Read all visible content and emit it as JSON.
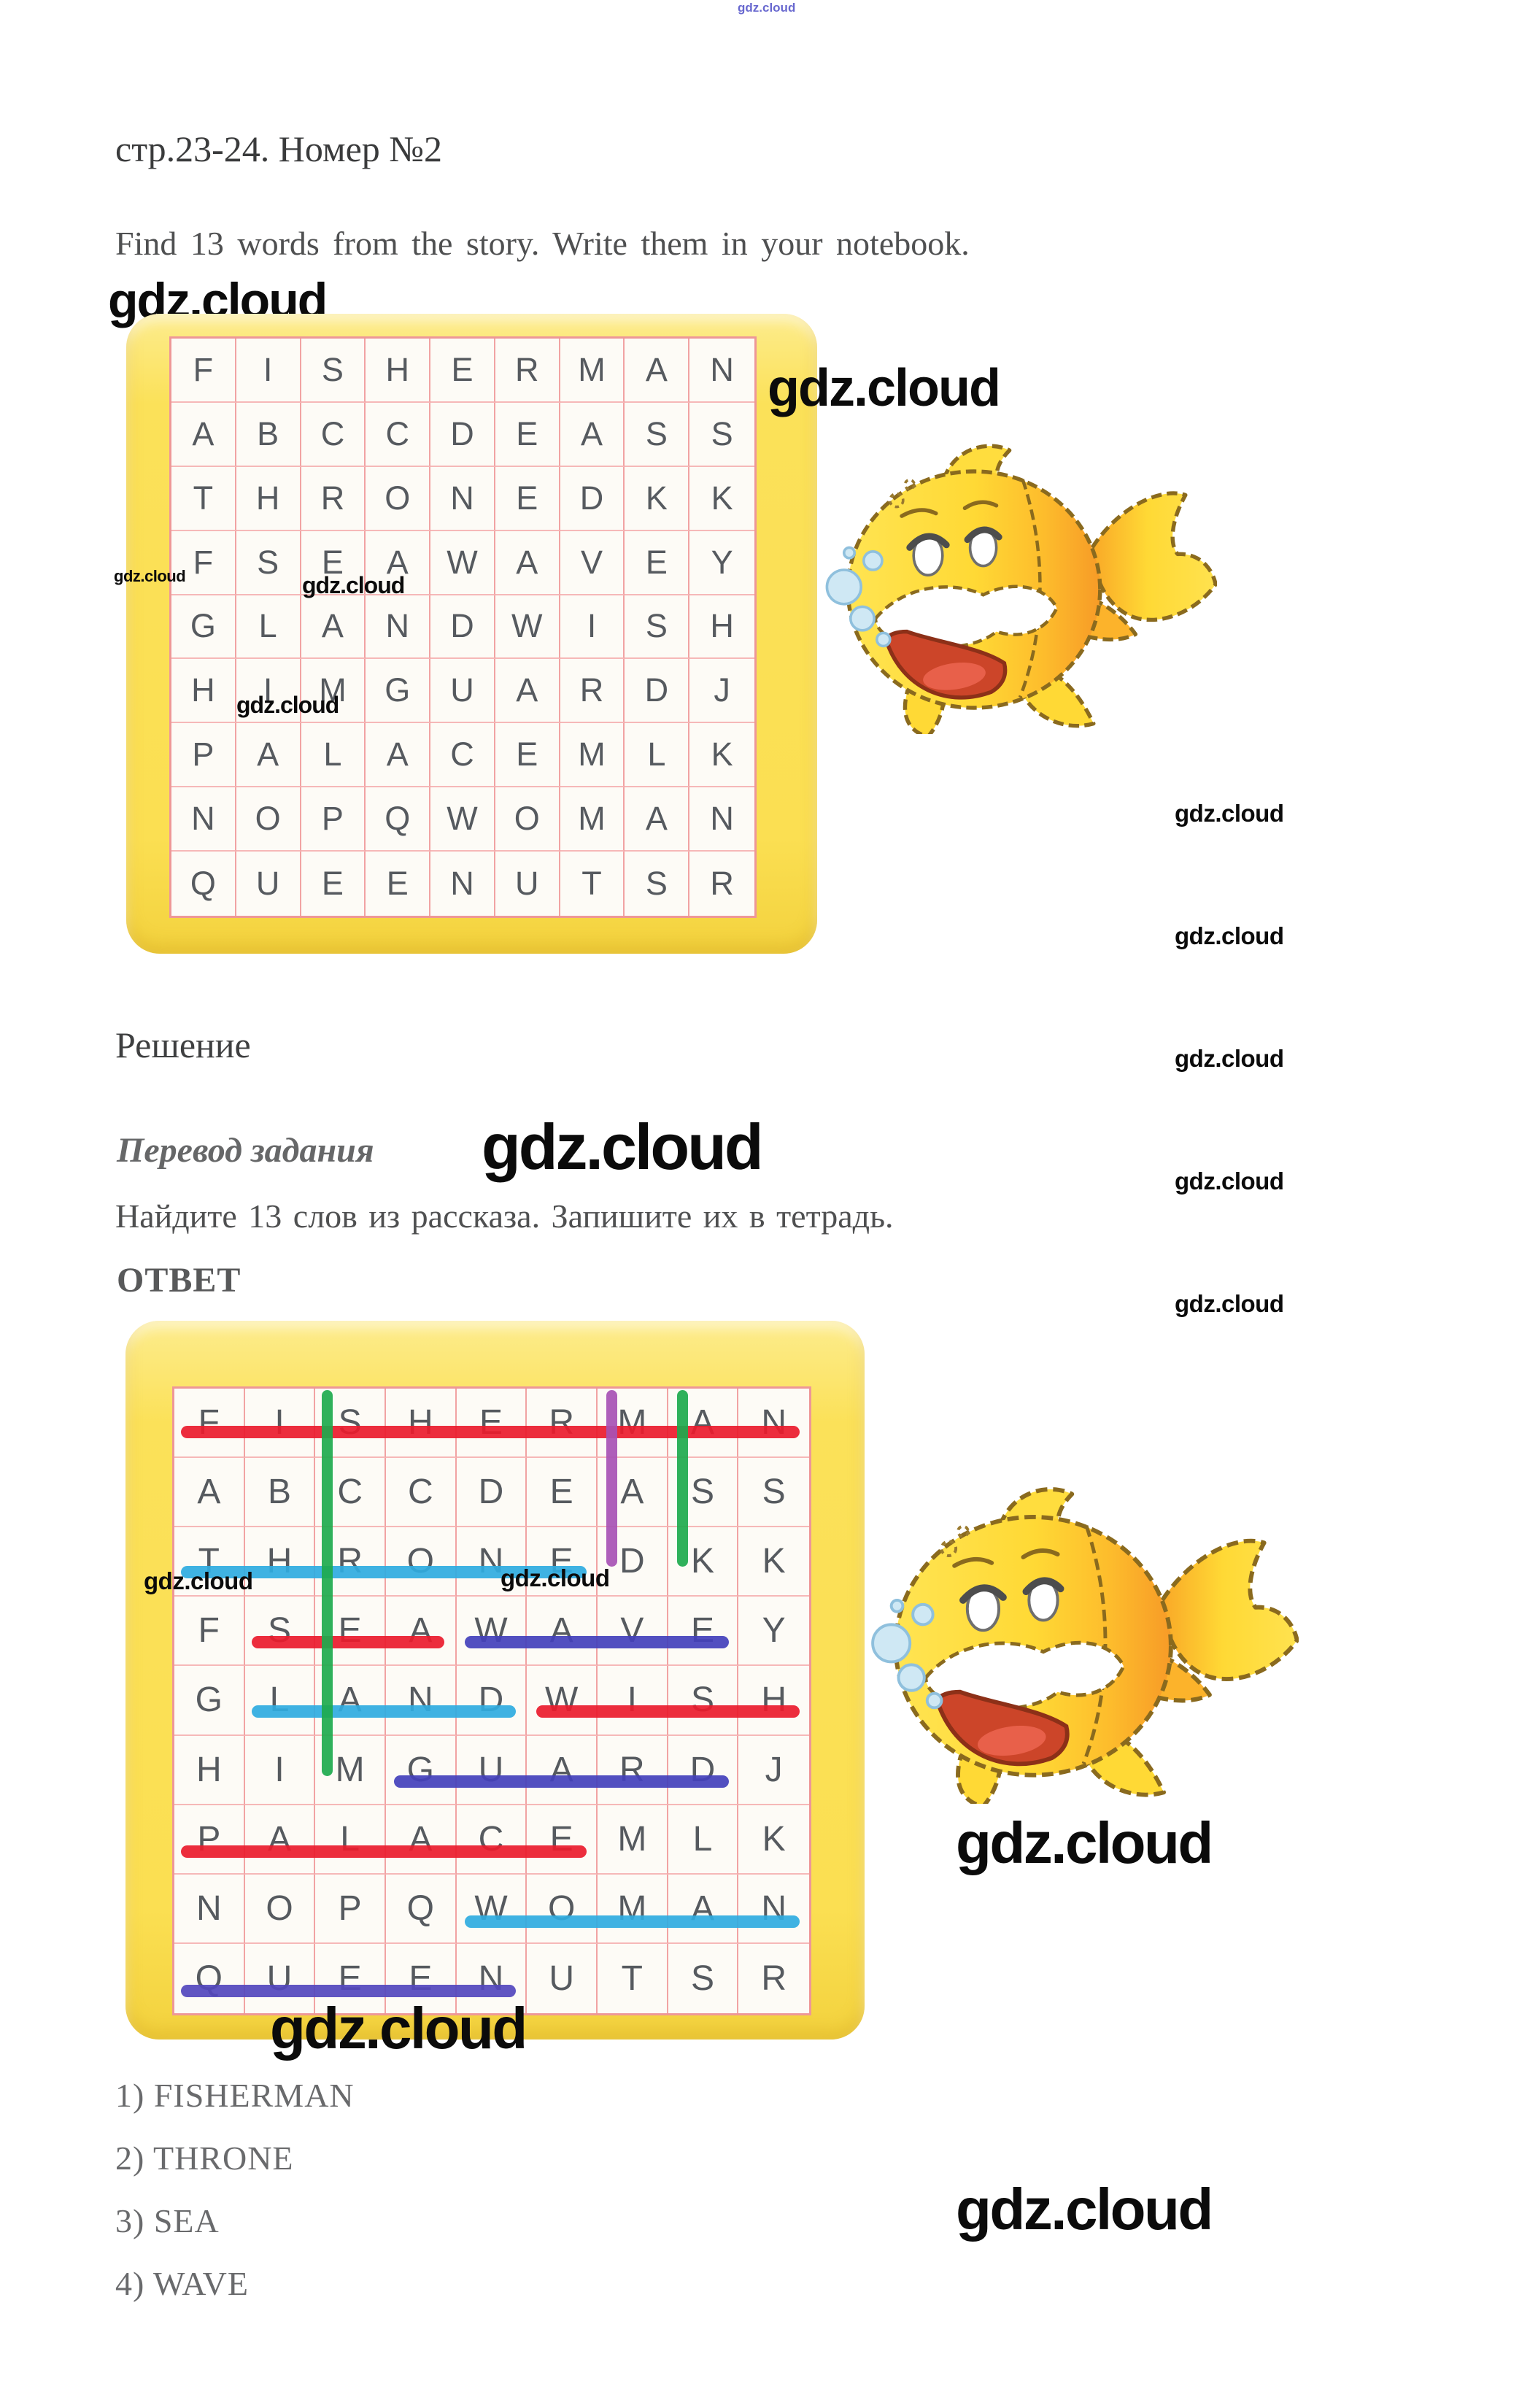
{
  "watermark": {
    "text": "gdz.cloud"
  },
  "header": {
    "title": "стр.23-24. Номер №2",
    "task_en": "Find 13 words from the story. Write them in your notebook."
  },
  "solution": {
    "heading": "Решение",
    "translation_label": "Перевод задания",
    "task_ru": "Найдите 13 слов из рассказа. Запишите их в тетрадь.",
    "answer_label": "ОТВЕТ"
  },
  "wordsearch": {
    "rows": [
      [
        "F",
        "I",
        "S",
        "H",
        "E",
        "R",
        "M",
        "A",
        "N"
      ],
      [
        "A",
        "B",
        "C",
        "C",
        "D",
        "E",
        "A",
        "S",
        "S"
      ],
      [
        "T",
        "H",
        "R",
        "O",
        "N",
        "E",
        "D",
        "K",
        "K"
      ],
      [
        "F",
        "S",
        "E",
        "A",
        "W",
        "A",
        "V",
        "E",
        "Y"
      ],
      [
        "G",
        "L",
        "A",
        "N",
        "D",
        "W",
        "I",
        "S",
        "H"
      ],
      [
        "H",
        "I",
        "M",
        "G",
        "U",
        "A",
        "R",
        "D",
        "J"
      ],
      [
        "P",
        "A",
        "L",
        "A",
        "C",
        "E",
        "M",
        "L",
        "K"
      ],
      [
        "N",
        "O",
        "P",
        "Q",
        "W",
        "O",
        "M",
        "A",
        "N"
      ],
      [
        "Q",
        "U",
        "E",
        "E",
        "N",
        "U",
        "T",
        "S",
        "R"
      ]
    ]
  },
  "found_words": [
    {
      "word": "FISHERMAN",
      "dir": "h",
      "row": 1,
      "c1": 1,
      "c2": 9,
      "color": "line_red"
    },
    {
      "word": "THRONE",
      "dir": "h",
      "row": 3,
      "c1": 1,
      "c2": 6,
      "color": "line_cyan"
    },
    {
      "word": "SEA",
      "dir": "h",
      "row": 4,
      "c1": 2,
      "c2": 4,
      "color": "line_red"
    },
    {
      "word": "WAVE",
      "dir": "h",
      "row": 4,
      "c1": 5,
      "c2": 8,
      "color": "line_blue"
    },
    {
      "word": "LAND",
      "dir": "h",
      "row": 5,
      "c1": 2,
      "c2": 5,
      "color": "line_cyan"
    },
    {
      "word": "WISH",
      "dir": "h",
      "row": 5,
      "c1": 6,
      "c2": 9,
      "color": "line_red"
    },
    {
      "word": "GUARD",
      "dir": "h",
      "row": 6,
      "c1": 4,
      "c2": 8,
      "color": "line_blue"
    },
    {
      "word": "PALACE",
      "dir": "h",
      "row": 7,
      "c1": 1,
      "c2": 6,
      "color": "line_red"
    },
    {
      "word": "WOMAN",
      "dir": "h",
      "row": 8,
      "c1": 5,
      "c2": 9,
      "color": "line_cyan"
    },
    {
      "word": "QUEEN",
      "dir": "h",
      "row": 9,
      "c1": 1,
      "c2": 5,
      "color": "line_violet"
    },
    {
      "word": "SCREAM",
      "dir": "v",
      "col": 3,
      "r1": 1,
      "r2": 6,
      "color": "line_green"
    },
    {
      "word": "MAD",
      "dir": "v",
      "col": 7,
      "r1": 1,
      "r2": 3,
      "color": "line_purple"
    },
    {
      "word": "ASK",
      "dir": "v",
      "col": 8,
      "r1": 1,
      "r2": 3,
      "color": "line_green"
    }
  ],
  "answers": [
    "1) FISHERMAN",
    "2) THRONE",
    "3) SEA",
    "4) WAVE"
  ],
  "colors": {
    "card_yellow": "#fbdf52",
    "grid_line": "#f1a3a3",
    "letter": "#565a5f",
    "line_red": "#ea1b2c",
    "line_green": "#1daa4d",
    "line_purple": "#a751b4",
    "line_cyan": "#2fabdf",
    "line_blue": "#4340bb",
    "line_violet": "#5247bd"
  }
}
